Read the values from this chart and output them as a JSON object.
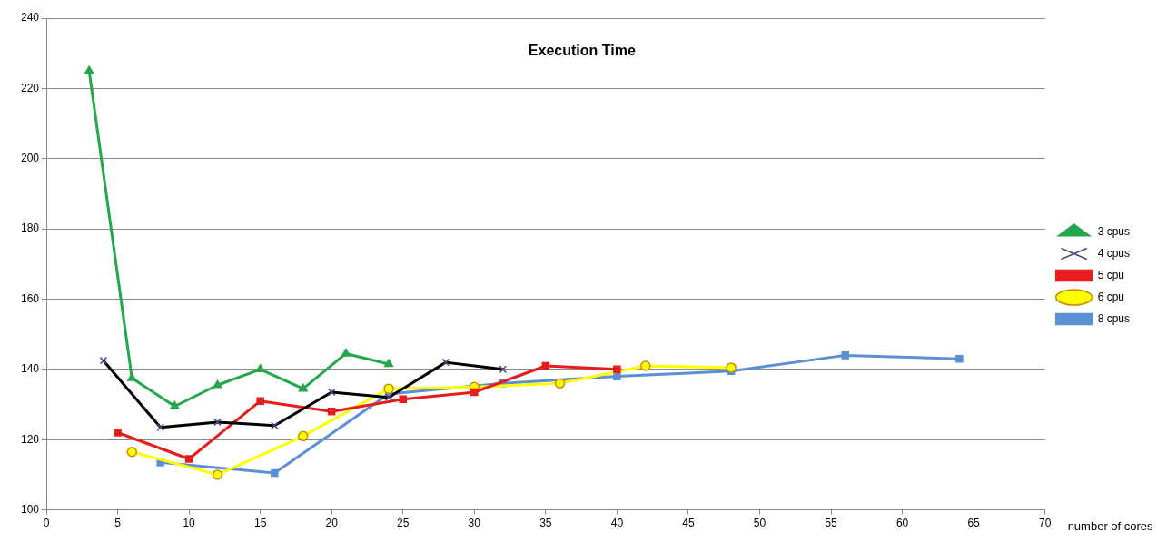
{
  "chart_data": {
    "type": "line",
    "title": "Execution Time",
    "xlabel": "number of cores",
    "xlim": [
      0,
      70
    ],
    "xticks": [
      0,
      5,
      10,
      15,
      20,
      25,
      30,
      35,
      40,
      45,
      50,
      55,
      60,
      65,
      70
    ],
    "ylim": [
      100,
      240
    ],
    "yticks": [
      100,
      120,
      140,
      160,
      180,
      200,
      220,
      240
    ],
    "grid": "y",
    "legend": "right",
    "line_style": "solid",
    "series": [
      {
        "name": "3 cpus",
        "color": "#22a84a",
        "marker": "triangle",
        "x": [
          3,
          6,
          9,
          12,
          15,
          18,
          21,
          24
        ],
        "values": [
          225,
          137.5,
          129.5,
          135.5,
          140,
          134.5,
          144.5,
          141.5
        ]
      },
      {
        "name": "4 cpus",
        "color": "#000000",
        "marker": "cross",
        "x": [
          4,
          8,
          12,
          16,
          20,
          24,
          28,
          32
        ],
        "values": [
          142.5,
          123.5,
          125,
          124,
          133.5,
          132,
          142,
          140
        ]
      },
      {
        "name": "5 cpu",
        "color": "#e81c1c",
        "marker": "square",
        "x": [
          5,
          10,
          15,
          20,
          25,
          30,
          35,
          40
        ],
        "values": [
          122,
          114.5,
          131,
          128,
          131.5,
          133.5,
          141,
          140
        ]
      },
      {
        "name": "6 cpu",
        "color": "#ffff00",
        "marker": "circle",
        "x": [
          6,
          12,
          18,
          24,
          30,
          36,
          42,
          48
        ],
        "values": [
          116.5,
          110,
          121,
          134.5,
          135,
          136,
          141,
          140.5
        ]
      },
      {
        "name": "8 cpus",
        "color": "#5b8fd4",
        "marker": "square",
        "x": [
          8,
          16,
          24,
          32,
          40,
          48,
          56,
          64
        ],
        "values": [
          113.5,
          110.5,
          133,
          136,
          138,
          139.5,
          144,
          143
        ]
      }
    ]
  }
}
